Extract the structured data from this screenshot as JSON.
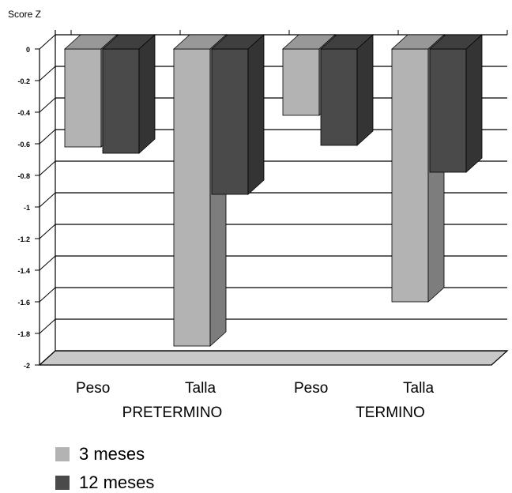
{
  "chart_data": {
    "type": "bar",
    "ylabel": "Score Z",
    "y_ticks": [
      "0",
      "-0.2",
      "-0.4",
      "-0.6",
      "-0.8",
      "-1",
      "-1.2",
      "-1.4",
      "-1.6",
      "-1.8",
      "-2"
    ],
    "ylim": [
      -2,
      0
    ],
    "categories": [
      "Peso",
      "Talla",
      "Peso",
      "Talla"
    ],
    "groups": [
      "PRETERMINO",
      "TERMINO"
    ],
    "series": [
      {
        "name": "3 meses",
        "values": [
          -0.62,
          -1.88,
          -0.42,
          -1.6
        ],
        "color": "#b3b3b3"
      },
      {
        "name": "12 meses",
        "values": [
          -0.66,
          -0.92,
          -0.61,
          -0.78
        ],
        "color": "#4a4a4a"
      }
    ],
    "grid": true,
    "legend_position": "bottom-left"
  }
}
